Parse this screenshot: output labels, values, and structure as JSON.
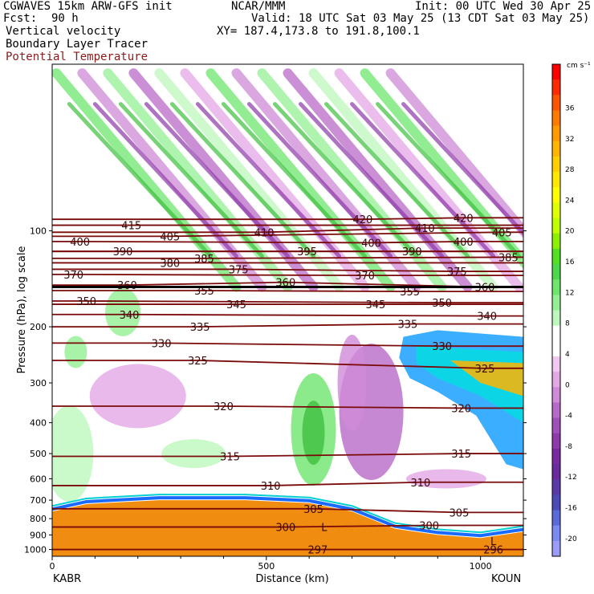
{
  "header": {
    "model": "CGWAVES 15km ARW-GFS init",
    "forecast_label": "Fcst:",
    "forecast_hours": "90 h",
    "org": "NCAR/MMM",
    "init": "Init: 00 UTC Wed 30 Apr 25",
    "valid": "Valid: 18 UTC Sat 03 May 25 (13 CDT Sat 03 May 25)",
    "xy": "XY= 187.4,173.8 to 191.8,100.1",
    "field1": "Vertical velocity",
    "field2": "Boundary Layer Tracer",
    "field3": "Potential Temperature"
  },
  "colors": {
    "theta": "#7a0a0a",
    "surface": "#f08c10",
    "field3_label": "#8b1a1a"
  },
  "chart_data": {
    "type": "heatmap",
    "title": "",
    "xlabel": "Distance (km)",
    "ylabel": "Pressure (hPa), log scale",
    "x_ticks": [
      "0",
      "500",
      "1000"
    ],
    "x_range": [
      0,
      1100
    ],
    "y_ticks": [
      "100",
      "200",
      "300",
      "400",
      "500",
      "600",
      "700",
      "800",
      "900",
      "1000"
    ],
    "y_range_hPa": [
      1050,
      30
    ],
    "y_scale": "log",
    "left_endpoint": "KABR",
    "right_endpoint": "KOUN",
    "colorbar": {
      "units": "cm s⁻¹",
      "labels": [
        "36",
        "32",
        "28",
        "24",
        "20",
        "16",
        "12",
        "8",
        "4",
        "0",
        "-4",
        "-8",
        "-12",
        "-16",
        "-20"
      ],
      "colors": [
        "#ff0000",
        "#ff2a00",
        "#ff5500",
        "#ff7a00",
        "#ff9a00",
        "#ffb400",
        "#ffd000",
        "#ffe800",
        "#ffff00",
        "#e0ff00",
        "#c0ff00",
        "#8ef000",
        "#52e020",
        "#4cd84c",
        "#6ee66e",
        "#94f094",
        "#bdf7bd",
        "#ffffff",
        "#ffffff",
        "#f0c8f0",
        "#e3a8e6",
        "#d08ad8",
        "#b96ac8",
        "#a050b8",
        "#8e3aa8",
        "#7a2aa0",
        "#6a2a9c",
        "#5a3aa8",
        "#4a4ab8",
        "#5a6ad8",
        "#7a8af0",
        "#9a9cf8"
      ]
    },
    "theta_contours": [
      {
        "label": "297",
        "x": 620,
        "p": 1000
      },
      {
        "label": "296",
        "x": 1030,
        "p": 1000
      },
      {
        "label": "300",
        "x": 545,
        "p": 850
      },
      {
        "label": "300",
        "x": 880,
        "p": 840
      },
      {
        "label": "305",
        "x": 610,
        "p": 745
      },
      {
        "label": "305",
        "x": 950,
        "p": 765
      },
      {
        "label": "310",
        "x": 510,
        "p": 630
      },
      {
        "label": "310",
        "x": 860,
        "p": 615
      },
      {
        "label": "315",
        "x": 415,
        "p": 510
      },
      {
        "label": "315",
        "x": 955,
        "p": 500
      },
      {
        "label": "320",
        "x": 400,
        "p": 355
      },
      {
        "label": "320",
        "x": 955,
        "p": 360
      },
      {
        "label": "325",
        "x": 340,
        "p": 255
      },
      {
        "label": "325",
        "x": 1010,
        "p": 270
      },
      {
        "label": "330",
        "x": 255,
        "p": 225
      },
      {
        "label": "330",
        "x": 910,
        "p": 230
      },
      {
        "label": "335",
        "x": 345,
        "p": 200
      },
      {
        "label": "335",
        "x": 830,
        "p": 196
      },
      {
        "label": "340",
        "x": 180,
        "p": 183
      },
      {
        "label": "340",
        "x": 1015,
        "p": 185
      },
      {
        "label": "345",
        "x": 430,
        "p": 170
      },
      {
        "label": "345",
        "x": 755,
        "p": 170
      },
      {
        "label": "350",
        "x": 80,
        "p": 166
      },
      {
        "label": "350",
        "x": 910,
        "p": 168
      },
      {
        "label": "355",
        "x": 355,
        "p": 154
      },
      {
        "label": "355",
        "x": 835,
        "p": 155
      },
      {
        "label": "360",
        "x": 175,
        "p": 148
      },
      {
        "label": "360",
        "x": 545,
        "p": 145
      },
      {
        "label": "360",
        "x": 1010,
        "p": 150
      },
      {
        "label": "370",
        "x": 50,
        "p": 137
      },
      {
        "label": "370",
        "x": 730,
        "p": 138
      },
      {
        "label": "375",
        "x": 435,
        "p": 132
      },
      {
        "label": "375",
        "x": 945,
        "p": 134
      },
      {
        "label": "380",
        "x": 275,
        "p": 126
      },
      {
        "label": "385",
        "x": 355,
        "p": 122
      },
      {
        "label": "385",
        "x": 1065,
        "p": 121
      },
      {
        "label": "390",
        "x": 165,
        "p": 116
      },
      {
        "label": "390",
        "x": 840,
        "p": 116
      },
      {
        "label": "395",
        "x": 595,
        "p": 116
      },
      {
        "label": "400",
        "x": 65,
        "p": 108
      },
      {
        "label": "400",
        "x": 745,
        "p": 109
      },
      {
        "label": "400",
        "x": 960,
        "p": 108
      },
      {
        "label": "405",
        "x": 275,
        "p": 104
      },
      {
        "label": "405",
        "x": 1050,
        "p": 101
      },
      {
        "label": "410",
        "x": 495,
        "p": 101
      },
      {
        "label": "410",
        "x": 870,
        "p": 98
      },
      {
        "label": "415",
        "x": 185,
        "p": 96
      },
      {
        "label": "420",
        "x": 725,
        "p": 92
      },
      {
        "label": "420",
        "x": 960,
        "p": 91
      }
    ],
    "tropopause_p": 150,
    "surface_label": "L",
    "surface_lows": [
      {
        "x": 635,
        "p": 850
      },
      {
        "x": 1030,
        "p": 940
      }
    ]
  }
}
